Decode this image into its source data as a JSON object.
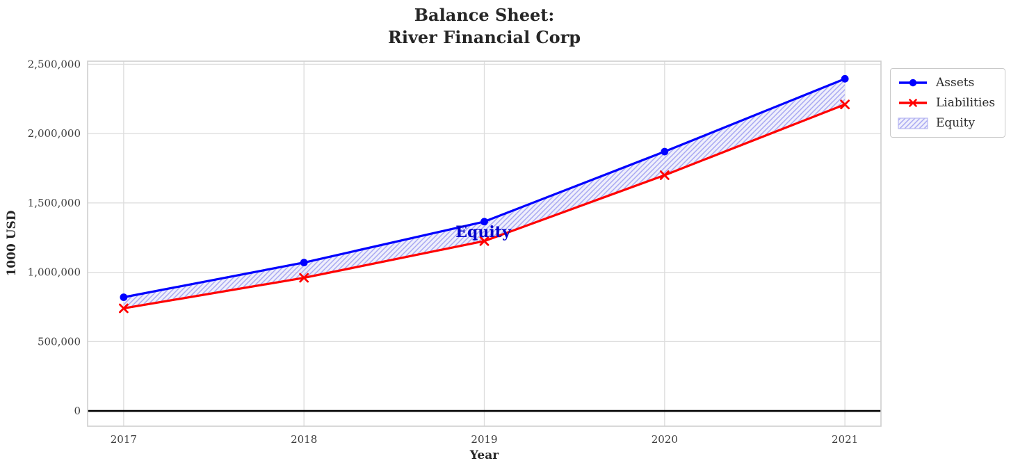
{
  "title": {
    "line1": "Balance Sheet:",
    "line2": "River Financial Corp"
  },
  "axes": {
    "xlabel": "Year",
    "ylabel": "1000 USD",
    "x_tick_labels": [
      "2017",
      "2018",
      "2019",
      "2020",
      "2021"
    ],
    "y_tick_labels": [
      "0",
      "500,000",
      "1,000,000",
      "1,500,000",
      "2,000,000",
      "2,500,000"
    ]
  },
  "legend": {
    "items": [
      {
        "label": "Assets",
        "swatch": "line-circle",
        "color": "#0000ff"
      },
      {
        "label": "Liabilities",
        "swatch": "line-x",
        "color": "#ff0000"
      },
      {
        "label": "Equity",
        "swatch": "hatched-patch",
        "color": "#9b9bf0"
      }
    ]
  },
  "annotation": {
    "text": "Equity",
    "color": "#0000cd"
  },
  "colors": {
    "assets": "#0000ff",
    "liabilities": "#ff0000",
    "equity_fill": "#e9e9fa",
    "equity_hatch": "#9b9bf0",
    "equity_edge": "#b9b9f2",
    "grid": "#dcdcdc",
    "spine": "#cfcfcf",
    "zero_line": "#000000",
    "text": "#262626",
    "annotation": "#0000cd"
  },
  "chart_data": {
    "type": "line",
    "title": "Balance Sheet: River Financial Corp",
    "xlabel": "Year",
    "ylabel": "1000 USD",
    "x": [
      2017,
      2018,
      2019,
      2020,
      2021
    ],
    "series": [
      {
        "name": "Assets",
        "marker": "circle",
        "color": "#0000ff",
        "values": [
          820000,
          1070000,
          1365000,
          1870000,
          2395000
        ]
      },
      {
        "name": "Liabilities",
        "marker": "x",
        "color": "#ff0000",
        "values": [
          740000,
          960000,
          1225000,
          1700000,
          2210000
        ]
      }
    ],
    "area_between": {
      "name": "Equity",
      "between": [
        "Assets",
        "Liabilities"
      ],
      "estimated_values": [
        80000,
        110000,
        140000,
        170000,
        185000
      ],
      "hatch": "//",
      "facecolor": "#e9e9fa",
      "hatch_color": "#9b9bf0"
    },
    "yticks": [
      0,
      500000,
      1000000,
      1500000,
      2000000,
      2500000
    ],
    "ylim": [
      -110000,
      2522000
    ],
    "xlim": [
      2016.8,
      2021.2
    ],
    "grid": true,
    "zero_line": true,
    "legend_position": "outside-upper-right"
  }
}
